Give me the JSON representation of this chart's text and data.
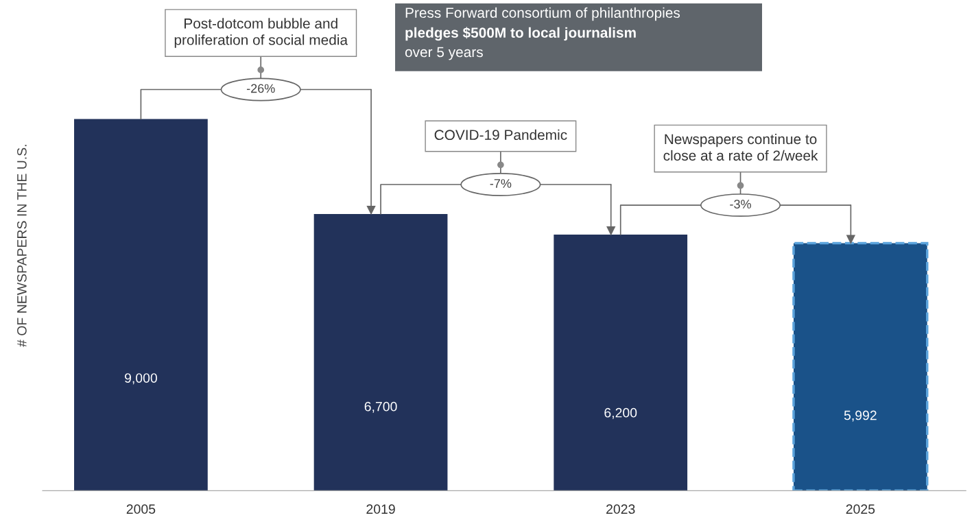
{
  "chart_data": {
    "type": "bar",
    "ylabel": "# OF NEWSPAPERS IN THE U.S.",
    "categories": [
      "2005",
      "2019",
      "2023",
      "2025"
    ],
    "series": [
      {
        "color": "#22325a",
        "values": [
          9000,
          6700,
          6200,
          null
        ],
        "value_labels": [
          "9,000",
          "6,700",
          "6,200",
          null
        ]
      },
      {
        "color": "#1a5289",
        "values": [
          null,
          null,
          null,
          5992
        ],
        "value_labels": [
          null,
          null,
          null,
          "5,992"
        ],
        "line_style": "dashed"
      }
    ],
    "annotations": [
      "Post-dotcom bubble and\nproliferation of social media",
      "-26%",
      "COVID-19 Pandemic",
      "-7%",
      "Newspapers continue to\nclose at a rate of 2/week",
      "-3%",
      "Press Forward consortium of philanthropies\npledges $500M to local journalism\nover 5 years"
    ],
    "legend": false,
    "grid": false
  }
}
